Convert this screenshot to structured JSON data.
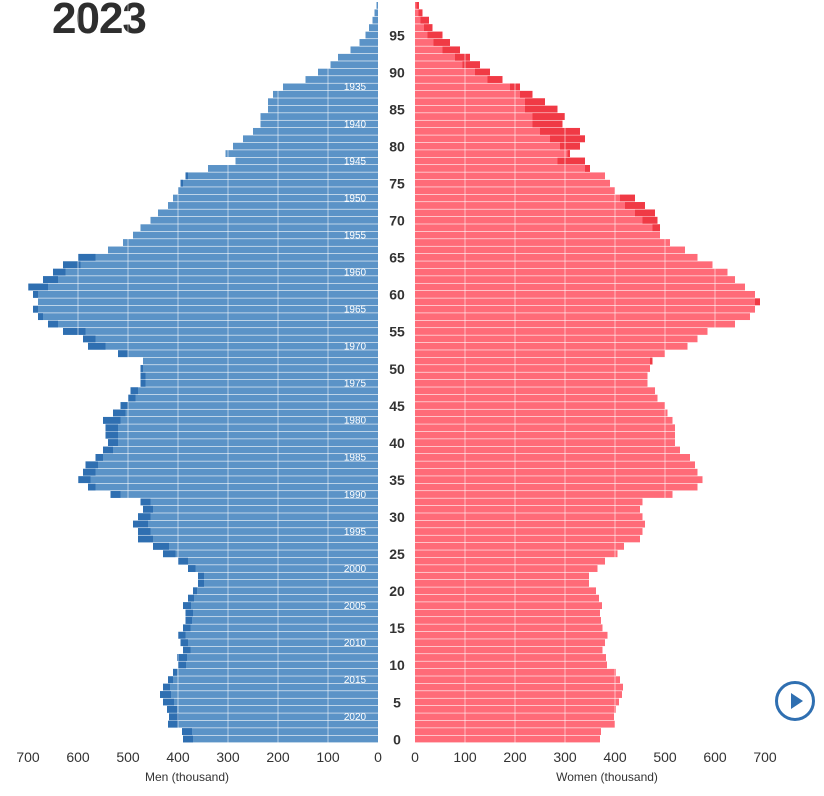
{
  "header": {
    "year": "2023"
  },
  "controls": {
    "play_icon": "play-icon",
    "play_color": "#2f6fb1"
  },
  "chart_data": {
    "type": "bar",
    "orientation": "horizontal",
    "title": "2023",
    "colors": {
      "men": "#5b93c7",
      "men_excess": "#2f6fb1",
      "women": "#ff6b78",
      "women_excess": "#f03a45"
    },
    "men_axis": {
      "label": "Men (thousand)",
      "ticks": [
        700,
        600,
        500,
        400,
        300,
        200,
        100,
        0
      ],
      "xlim": [
        0,
        700
      ]
    },
    "women_axis": {
      "label": "Women (thousand)",
      "ticks": [
        0,
        100,
        200,
        300,
        400,
        500,
        600,
        700
      ],
      "xlim": [
        0,
        700
      ]
    },
    "age_ticks": [
      0,
      5,
      10,
      15,
      20,
      25,
      30,
      35,
      40,
      45,
      50,
      55,
      60,
      65,
      70,
      75,
      80,
      85,
      90,
      95
    ],
    "birth_year_labels": [
      2020,
      2015,
      2010,
      2005,
      2000,
      1995,
      1990,
      1985,
      1980,
      1975,
      1970,
      1965,
      1960,
      1955,
      1950,
      1945,
      1940,
      1935
    ],
    "ages": [
      0,
      1,
      2,
      3,
      4,
      5,
      6,
      7,
      8,
      9,
      10,
      11,
      12,
      13,
      14,
      15,
      16,
      17,
      18,
      19,
      20,
      21,
      22,
      23,
      24,
      25,
      26,
      27,
      28,
      29,
      30,
      31,
      32,
      33,
      34,
      35,
      36,
      37,
      38,
      39,
      40,
      41,
      42,
      43,
      44,
      45,
      46,
      47,
      48,
      49,
      50,
      51,
      52,
      53,
      54,
      55,
      56,
      57,
      58,
      59,
      60,
      61,
      62,
      63,
      64,
      65,
      66,
      67,
      68,
      69,
      70,
      71,
      72,
      73,
      74,
      75,
      76,
      77,
      78,
      79,
      80,
      81,
      82,
      83,
      84,
      85,
      86,
      87,
      88,
      89,
      90,
      91,
      92,
      93,
      94,
      95,
      96,
      97,
      98,
      99
    ],
    "series": [
      {
        "name": "Men (thousand)",
        "values": [
          390,
          392,
          420,
          418,
          422,
          430,
          436,
          430,
          420,
          410,
          400,
          402,
          390,
          395,
          400,
          390,
          385,
          385,
          390,
          380,
          370,
          360,
          360,
          380,
          400,
          430,
          450,
          480,
          480,
          490,
          480,
          470,
          475,
          535,
          580,
          600,
          590,
          585,
          565,
          550,
          540,
          545,
          545,
          550,
          530,
          515,
          500,
          495,
          475,
          475,
          475,
          470,
          520,
          580,
          590,
          630,
          660,
          680,
          690,
          680,
          690,
          700,
          670,
          650,
          630,
          600,
          540,
          510,
          490,
          475,
          455,
          440,
          420,
          410,
          400,
          395,
          385,
          340,
          285,
          305,
          290,
          270,
          250,
          235,
          235,
          220,
          220,
          210,
          190,
          145,
          120,
          95,
          80,
          55,
          37,
          25,
          18,
          11,
          7,
          3
        ]
      },
      {
        "name": "Women (thousand)",
        "values": [
          370,
          372,
          400,
          398,
          402,
          408,
          414,
          416,
          410,
          402,
          384,
          382,
          375,
          380,
          385,
          375,
          372,
          370,
          374,
          368,
          362,
          348,
          348,
          365,
          380,
          405,
          418,
          450,
          455,
          460,
          455,
          450,
          455,
          515,
          565,
          575,
          565,
          560,
          550,
          530,
          520,
          520,
          520,
          515,
          505,
          500,
          485,
          480,
          465,
          465,
          470,
          475,
          500,
          545,
          565,
          585,
          640,
          670,
          680,
          690,
          680,
          660,
          640,
          625,
          595,
          565,
          540,
          510,
          490,
          490,
          485,
          480,
          460,
          440,
          400,
          390,
          380,
          350,
          340,
          310,
          330,
          340,
          330,
          295,
          300,
          285,
          260,
          235,
          210,
          175,
          150,
          130,
          110,
          90,
          70,
          55,
          35,
          28,
          15,
          8
        ]
      },
      {
        "name": "Men excess",
        "values": [
          0,
          0,
          0,
          0,
          0,
          0,
          0,
          0,
          0,
          0,
          0,
          0,
          0,
          0,
          0,
          0,
          0,
          0,
          0,
          0,
          0,
          0,
          0,
          0,
          0,
          0,
          0,
          0,
          0,
          0,
          0,
          0,
          0,
          0,
          0,
          0,
          0,
          0,
          0,
          0,
          0,
          0,
          0,
          0,
          0,
          0,
          0,
          0,
          0,
          0,
          0,
          0,
          0,
          0,
          0,
          0,
          0,
          0,
          0,
          0,
          0,
          0,
          0,
          0,
          0,
          0,
          0,
          0,
          0,
          0,
          0,
          0,
          0,
          0,
          0,
          0,
          0,
          0,
          0,
          0,
          0,
          0,
          0,
          0,
          0,
          0,
          0,
          0,
          0,
          0,
          0,
          0,
          0,
          0,
          0,
          0,
          0,
          0,
          0,
          0
        ]
      }
    ]
  }
}
